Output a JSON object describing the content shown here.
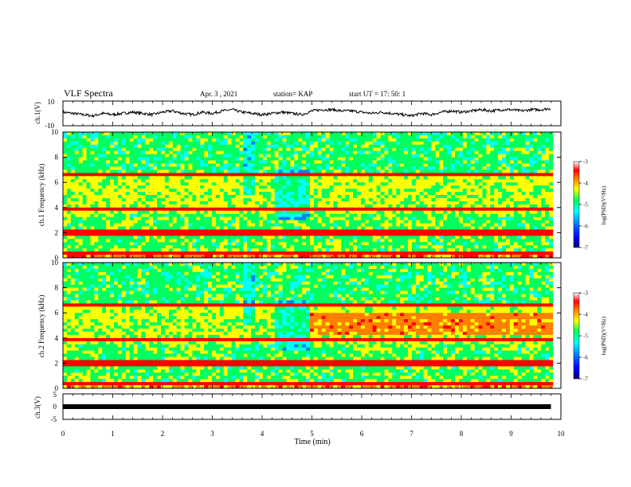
{
  "header": {
    "title": "VLF Spectra",
    "date": "Apr. 3 , 2021",
    "station": "station= KAP",
    "start": "start UT = 17: 50: 1"
  },
  "colorbar": {
    "label": "log(PSD)(V²/Hz)",
    "ticks": [
      "-3",
      "-4",
      "-5",
      "-6",
      "-7"
    ],
    "colors": [
      "#000080",
      "#0000ff",
      "#0080ff",
      "#00ffff",
      "#00ff60",
      "#ffff00",
      "#ff8000",
      "#ff0000",
      "#ffa0a0",
      "#ffffff"
    ]
  },
  "chart_data": [
    {
      "type": "line",
      "panel": "ch1-waveform",
      "ylabel": "ch.1(V)",
      "ylim": [
        -10,
        10
      ],
      "yticks": [
        "10",
        "-10"
      ],
      "x": [
        0,
        0.2,
        0.4,
        0.6,
        0.8,
        1.0,
        1.2,
        1.4,
        1.6,
        1.8,
        2.0,
        2.2,
        2.4,
        2.6,
        2.8,
        3.0,
        3.2,
        3.4,
        3.6,
        3.8,
        4.0,
        4.2,
        4.4,
        4.6,
        4.8,
        5.0,
        5.2,
        5.4,
        5.6,
        5.8,
        6.0,
        6.2,
        6.4,
        6.6,
        6.8,
        7.0,
        7.2,
        7.4,
        7.6,
        7.8,
        8.0,
        8.2,
        8.4,
        8.6,
        8.8,
        9.0,
        9.2,
        9.4,
        9.6,
        9.8
      ],
      "values": [
        1,
        0,
        -1,
        -2,
        0,
        -1,
        0,
        1,
        0,
        -1,
        1,
        2,
        0,
        -1,
        1,
        0,
        2,
        3,
        1,
        0,
        -1,
        0,
        1,
        0,
        -1,
        2,
        3,
        3,
        2,
        2,
        1,
        0,
        1,
        0,
        -1,
        -2,
        0,
        -1,
        1,
        2,
        1,
        2,
        3,
        2,
        3,
        3,
        2,
        3,
        3,
        4
      ]
    },
    {
      "type": "heatmap",
      "panel": "ch1-spectrogram",
      "ylabel": "ch.1 Frequency (kHz)",
      "ylim": [
        0,
        10
      ],
      "yticks": [
        "0",
        "2",
        "4",
        "6",
        "8",
        "10"
      ],
      "clim": [
        -7,
        -3
      ]
    },
    {
      "type": "heatmap",
      "panel": "ch2-spectrogram",
      "ylabel": "ch.2 Frequency (kHz)",
      "ylim": [
        0,
        10
      ],
      "yticks": [
        "0",
        "2",
        "4",
        "6",
        "8",
        "10"
      ],
      "clim": [
        -7,
        -3
      ]
    },
    {
      "type": "line",
      "panel": "ch3-waveform",
      "ylabel": "ch.3(V)",
      "ylim": [
        -5,
        5
      ],
      "yticks": [
        "5",
        "0",
        "-5"
      ],
      "x": [
        0,
        9.8
      ],
      "values": [
        0,
        0
      ]
    }
  ],
  "xaxis": {
    "label": "Time (min)",
    "xlim": [
      0,
      10
    ],
    "ticks": [
      "0",
      "1",
      "2",
      "3",
      "4",
      "5",
      "6",
      "7",
      "8",
      "9",
      "10"
    ]
  }
}
